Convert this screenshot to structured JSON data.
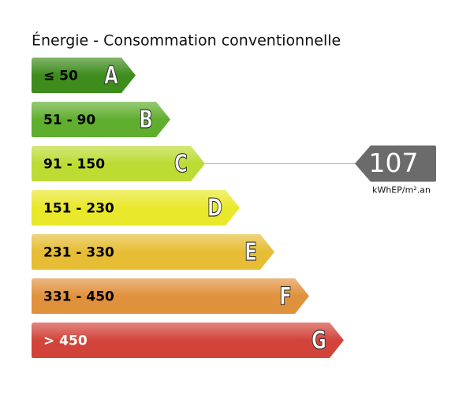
{
  "title": "Énergie - Consommation conventionnelle",
  "classes": [
    {
      "range": "≤ 50",
      "letter": "A",
      "color": "#3d8c1c",
      "text_color": "#000000"
    },
    {
      "range": "51 - 90",
      "letter": "B",
      "color": "#5fae2e",
      "text_color": "#000000"
    },
    {
      "range": "91 - 150",
      "letter": "C",
      "color": "#bcdc34",
      "text_color": "#000000"
    },
    {
      "range": "151 - 230",
      "letter": "D",
      "color": "#e9e82a",
      "text_color": "#000000"
    },
    {
      "range": "231 - 330",
      "letter": "E",
      "color": "#e6bd34",
      "text_color": "#000000"
    },
    {
      "range": "331 - 450",
      "letter": "F",
      "color": "#e0913c",
      "text_color": "#000000"
    },
    {
      "range": "> 450",
      "letter": "G",
      "color": "#d2443a",
      "text_color": "#ffffff"
    }
  ],
  "indicator": {
    "value": "107",
    "unit": "kWhEP/m².an",
    "class": "C",
    "color": "#6b6b6b"
  }
}
